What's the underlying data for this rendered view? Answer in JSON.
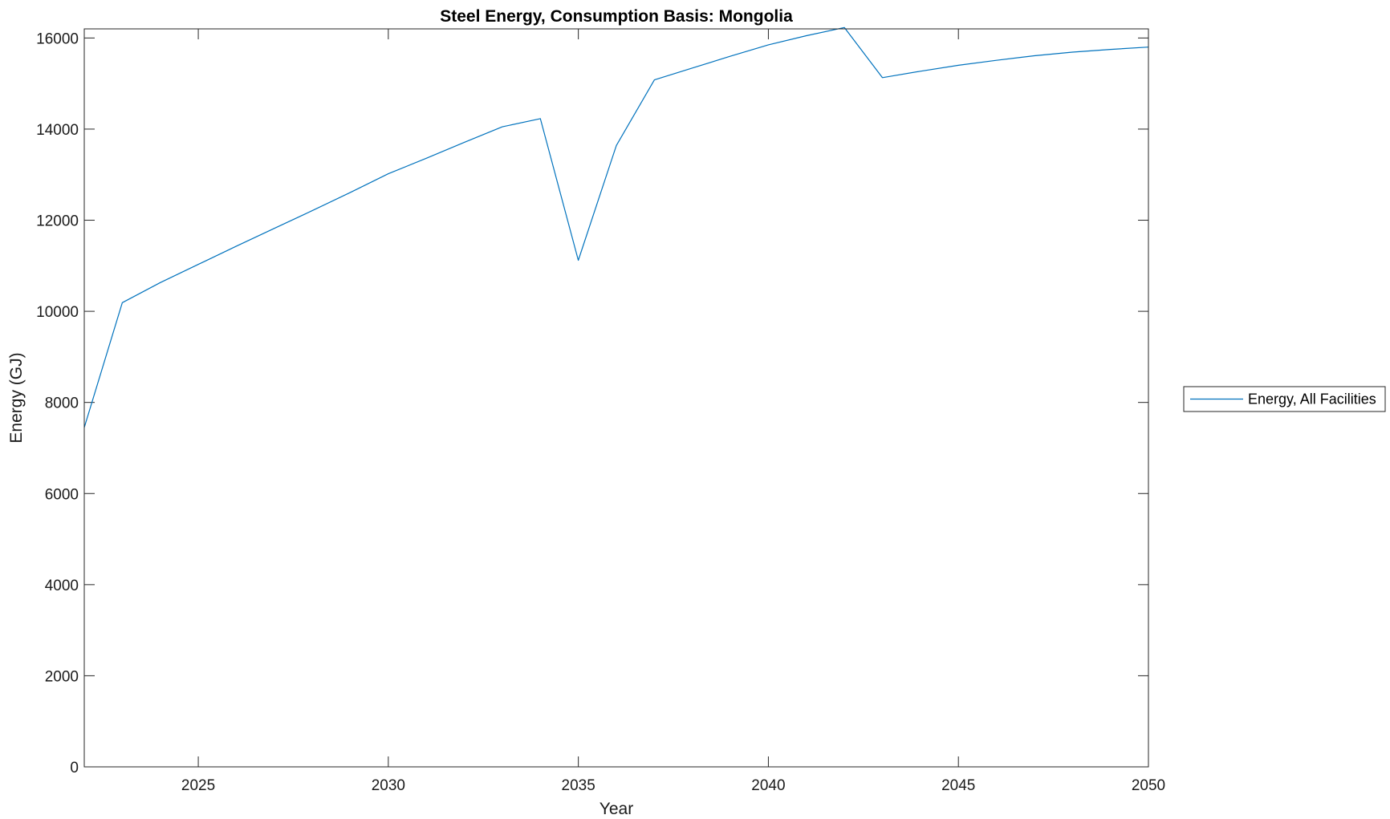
{
  "colors": {
    "series": "#0072bd",
    "axes": "#262626",
    "background": "#ffffff"
  },
  "chart_data": {
    "type": "line",
    "title": "Steel Energy, Consumption Basis: Mongolia",
    "xlabel": "Year",
    "ylabel": "Energy (GJ)",
    "xlim": [
      2022,
      2050
    ],
    "ylim": [
      0,
      16200
    ],
    "xticks": [
      2025,
      2030,
      2035,
      2040,
      2045,
      2050
    ],
    "yticks": [
      0,
      2000,
      4000,
      6000,
      8000,
      10000,
      12000,
      14000,
      16000
    ],
    "grid": false,
    "legend_position": "outside-right",
    "series": [
      {
        "name": "Energy, All Facilities",
        "x": [
          2022,
          2023,
          2024,
          2025,
          2026,
          2027,
          2028,
          2029,
          2030,
          2031,
          2032,
          2033,
          2034,
          2035,
          2036,
          2037,
          2038,
          2039,
          2040,
          2041,
          2042,
          2043,
          2044,
          2045,
          2046,
          2047,
          2048,
          2049,
          2050
        ],
        "y": [
          7450,
          10190,
          10630,
          11030,
          11430,
          11820,
          12210,
          12610,
          13020,
          13360,
          13710,
          14050,
          14230,
          11120,
          13640,
          15080,
          15340,
          15600,
          15850,
          16050,
          16230,
          15130,
          15270,
          15400,
          15510,
          15610,
          15690,
          15750,
          15800
        ]
      }
    ]
  }
}
